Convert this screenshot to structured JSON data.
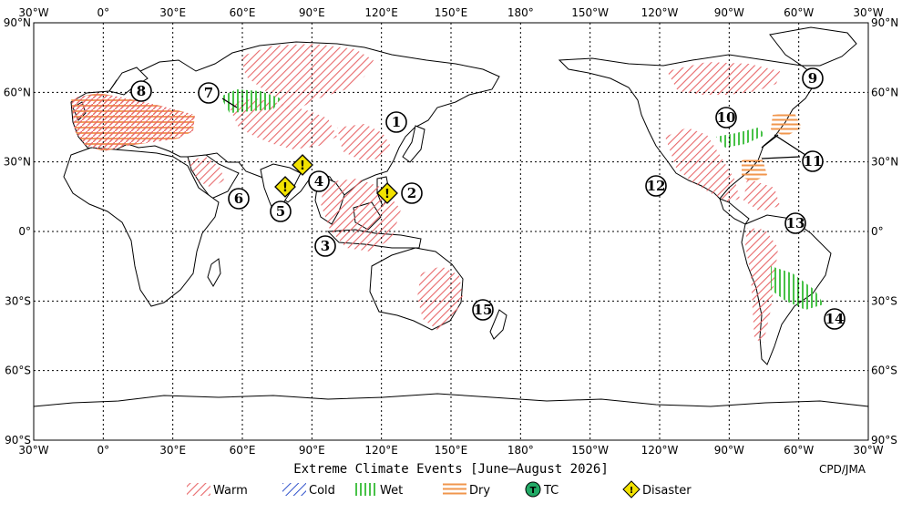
{
  "title": "Extreme Climate Events [June—August 2026]",
  "credit": "CPD/JMA",
  "top_lon_labels": [
    "30°W",
    "0°",
    "30°E",
    "60°E",
    "90°E",
    "120°E",
    "150°E",
    "180°",
    "150°W",
    "120°W",
    "90°W",
    "60°W",
    "30°W"
  ],
  "bottom_lon_labels": [
    "30°W",
    "0°",
    "30°E",
    "60°E",
    "90°E",
    "120°E",
    "150°E",
    "180°",
    "150°W",
    "120°W",
    "90°W",
    "60°W",
    "30°W"
  ],
  "lat_labels": [
    "90°N",
    "60°N",
    "30°N",
    "0°",
    "30°S",
    "60°S",
    "90°S"
  ],
  "legend": [
    {
      "label": "Warm",
      "color": "#e8696b",
      "pattern": "warm"
    },
    {
      "label": "Cold",
      "color": "#3355cc",
      "pattern": "cold"
    },
    {
      "label": "Wet",
      "color": "#33bb33",
      "pattern": "wet"
    },
    {
      "label": "Dry",
      "color": "#f0964c",
      "pattern": "dry"
    },
    {
      "label": "TC",
      "color": "#22aa66",
      "pattern": "tc"
    },
    {
      "label": "Disaster",
      "color": "#f2e200",
      "pattern": "disaster"
    }
  ],
  "event_numbers": [
    "1",
    "2",
    "3",
    "4",
    "5",
    "6",
    "7",
    "8",
    "9",
    "10",
    "11",
    "11",
    "12",
    "13",
    "14",
    "15"
  ]
}
